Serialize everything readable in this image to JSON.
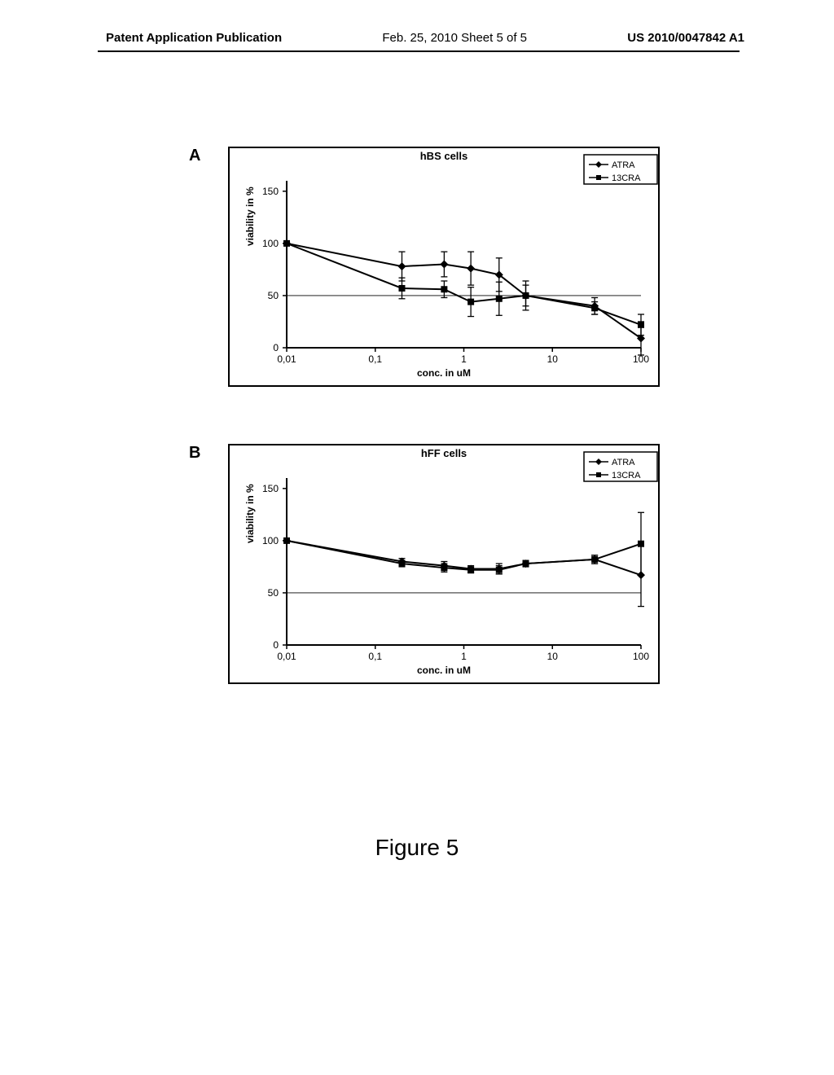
{
  "header": {
    "left": "Patent Application Publication",
    "center": "Feb. 25, 2010  Sheet 5 of 5",
    "right": "US 2010/0047842 A1"
  },
  "figure_label": "Figure 5",
  "panels": {
    "a": {
      "label": "A",
      "title": "hBS cells"
    },
    "b": {
      "label": "B",
      "title": "hFF cells"
    }
  },
  "chart_common": {
    "ylabel": "viability in %",
    "xlabel": "conc. in uM",
    "xtick_labels": [
      "0,01",
      "0,1",
      "1",
      "10",
      "100"
    ],
    "yticks": [
      0,
      50,
      100,
      150
    ],
    "ylim": [
      0,
      160
    ],
    "frame_color": "#000000",
    "background_color": "#ffffff",
    "grid_hline_y": 50,
    "line_width": 2,
    "legend": {
      "items": [
        "ATRA",
        "13CRA"
      ]
    }
  },
  "chart_a": {
    "series": [
      {
        "name": "ATRA",
        "marker": "diamond",
        "color": "#000000",
        "x": [
          0.01,
          0.2,
          0.6,
          1.2,
          2.5,
          5,
          30,
          100
        ],
        "y": [
          100,
          78,
          80,
          76,
          70,
          50,
          40,
          9
        ],
        "err": [
          0,
          14,
          12,
          16,
          16,
          10,
          8,
          16
        ]
      },
      {
        "name": "13CRA",
        "marker": "square",
        "color": "#000000",
        "x": [
          0.01,
          0.2,
          0.6,
          1.2,
          2.5,
          5,
          30,
          100
        ],
        "y": [
          100,
          57,
          56,
          44,
          47,
          50,
          38,
          22
        ],
        "err": [
          0,
          10,
          8,
          14,
          16,
          14,
          6,
          10
        ]
      }
    ]
  },
  "chart_b": {
    "series": [
      {
        "name": "ATRA",
        "marker": "diamond",
        "color": "#000000",
        "x": [
          0.01,
          0.2,
          0.6,
          1.2,
          2.5,
          5,
          30,
          100
        ],
        "y": [
          100,
          80,
          76,
          73,
          73,
          78,
          82,
          67
        ],
        "err": [
          0,
          3,
          4,
          3,
          5,
          3,
          4,
          30
        ]
      },
      {
        "name": "13CRA",
        "marker": "square",
        "color": "#000000",
        "x": [
          0.01,
          0.2,
          0.6,
          1.2,
          2.5,
          5,
          30,
          100
        ],
        "y": [
          100,
          78,
          74,
          72,
          72,
          78,
          82,
          97
        ],
        "err": [
          0,
          3,
          4,
          3,
          4,
          3,
          4,
          30
        ]
      }
    ]
  }
}
